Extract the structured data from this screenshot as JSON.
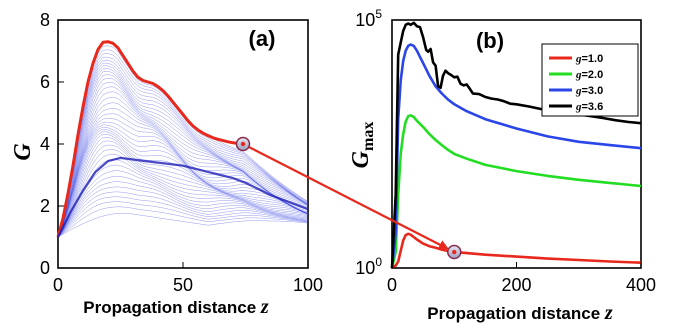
{
  "chart_data": [
    {
      "type": "line",
      "panel_label": "(a)",
      "xlabel": "Propagation distance",
      "xlabel_symbol": "z",
      "ylabel": "G",
      "xlim": [
        0,
        100
      ],
      "ylim": [
        0,
        8
      ],
      "xticks": [
        "0",
        "50",
        "100"
      ],
      "yticks": [
        "0",
        "2",
        "4",
        "6",
        "8"
      ],
      "series": [
        {
          "color": "#e8281c",
          "x": [
            0,
            2,
            4,
            6,
            8,
            10,
            12,
            14,
            16,
            18,
            20,
            22,
            24,
            26,
            28,
            30,
            32,
            34,
            36,
            38,
            40,
            42,
            44,
            46,
            48,
            50,
            52,
            54,
            56,
            58,
            60,
            62,
            64,
            66,
            68,
            70,
            72,
            74
          ],
          "y": [
            1.0,
            1.6,
            2.4,
            3.3,
            4.3,
            5.2,
            6.0,
            6.6,
            7.05,
            7.28,
            7.3,
            7.25,
            7.1,
            6.85,
            6.6,
            6.35,
            6.15,
            6.05,
            6.0,
            5.95,
            5.85,
            5.72,
            5.55,
            5.35,
            5.15,
            4.95,
            4.75,
            4.58,
            4.45,
            4.35,
            4.27,
            4.2,
            4.15,
            4.11,
            4.07,
            4.04,
            4.02,
            4.0
          ]
        },
        {
          "color": "#1c1cb4",
          "x": [
            0,
            5,
            10,
            15,
            20,
            25,
            30,
            35,
            40,
            45,
            50,
            55,
            60,
            65,
            70,
            75,
            80,
            85,
            90,
            95,
            100
          ],
          "y": [
            1.0,
            1.8,
            2.5,
            3.1,
            3.45,
            3.55,
            3.5,
            3.45,
            3.4,
            3.35,
            3.3,
            3.2,
            3.1,
            3.0,
            2.9,
            2.75,
            2.55,
            2.35,
            2.2,
            2.05,
            1.9
          ]
        }
      ],
      "marker": {
        "x": 74,
        "y": 4.0
      }
    },
    {
      "type": "line",
      "panel_label": "(b)",
      "xlabel": "Propagation distance",
      "xlabel_symbol": "z",
      "ylabel": "G",
      "ylabel_sub": "max",
      "xlim": [
        0,
        400
      ],
      "ylim": [
        1,
        100000
      ],
      "yscale": "log",
      "xticks": [
        "0",
        "200",
        "400"
      ],
      "ytick_base": "10",
      "yticks": [
        {
          "exp": "0",
          "value": 1
        },
        {
          "exp": "5",
          "value": 100000
        }
      ],
      "legend": {
        "position": "top-right",
        "entries": [
          {
            "sym": "g",
            "eq": "=1.0",
            "color": "#e8281c"
          },
          {
            "sym": "g",
            "eq": "=2.0",
            "color": "#22dd22"
          },
          {
            "sym": "g",
            "eq": "=3.0",
            "color": "#2a46e8"
          },
          {
            "sym": "g",
            "eq": "=3.6",
            "color": "#000000"
          }
        ]
      },
      "series": [
        {
          "color": "#e8281c",
          "x": [
            0,
            6,
            10,
            14,
            18,
            22,
            26,
            30,
            35,
            40,
            50,
            60,
            70,
            80,
            90,
            100,
            120,
            150,
            200,
            250,
            300,
            350,
            400
          ],
          "y": [
            1.0,
            1.12,
            1.35,
            2.2,
            3.6,
            4.6,
            4.9,
            4.7,
            4.2,
            3.75,
            3.1,
            2.75,
            2.55,
            2.35,
            2.2,
            2.1,
            2.0,
            1.85,
            1.7,
            1.55,
            1.45,
            1.35,
            1.28
          ]
        },
        {
          "color": "#22dd22",
          "x": [
            0,
            6,
            10,
            14,
            18,
            22,
            26,
            30,
            35,
            40,
            50,
            60,
            70,
            80,
            90,
            100,
            120,
            150,
            200,
            250,
            300,
            350,
            400
          ],
          "y": [
            1.0,
            2.1,
            30,
            200,
            500,
            900,
            1150,
            1200,
            1100,
            930,
            700,
            500,
            380,
            300,
            240,
            200,
            160,
            120,
            90,
            72,
            60,
            52,
            45
          ]
        },
        {
          "color": "#2a46e8",
          "x": [
            0,
            6,
            10,
            14,
            18,
            22,
            26,
            30,
            35,
            40,
            45,
            50,
            60,
            70,
            80,
            90,
            100,
            120,
            150,
            200,
            250,
            300,
            350,
            400
          ],
          "y": [
            1.0,
            5,
            1000,
            6000,
            15000,
            24000,
            30000,
            32000,
            30000,
            24000,
            18000,
            13500,
            7500,
            4600,
            3300,
            2500,
            2000,
            1450,
            1000,
            650,
            450,
            350,
            300,
            260
          ]
        },
        {
          "color": "#000000",
          "x": [
            0,
            6,
            10,
            14,
            18,
            22,
            26,
            30,
            35,
            40,
            45,
            50,
            55,
            58,
            62,
            66,
            70,
            74,
            78,
            82,
            86,
            90,
            95,
            100,
            105,
            110,
            115,
            120,
            125,
            130,
            140,
            150,
            160,
            170,
            180,
            190,
            200,
            220,
            240,
            260,
            280,
            300,
            320,
            340,
            360,
            380,
            400
          ],
          "y": [
            1.0,
            30,
            20000,
            35000,
            60000,
            80000,
            85000,
            80000,
            88000,
            75000,
            72000,
            45000,
            25000,
            23000,
            26000,
            14000,
            12000,
            4600,
            4300,
            7500,
            9500,
            8500,
            7800,
            7000,
            7200,
            5200,
            4800,
            5000,
            4100,
            3300,
            3200,
            2800,
            2600,
            2500,
            2300,
            2050,
            2000,
            1800,
            1600,
            1450,
            1350,
            1250,
            1150,
            1050,
            950,
            880,
            830
          ]
        }
      ],
      "marker": {
        "x": 100,
        "y": 2.1
      }
    }
  ]
}
